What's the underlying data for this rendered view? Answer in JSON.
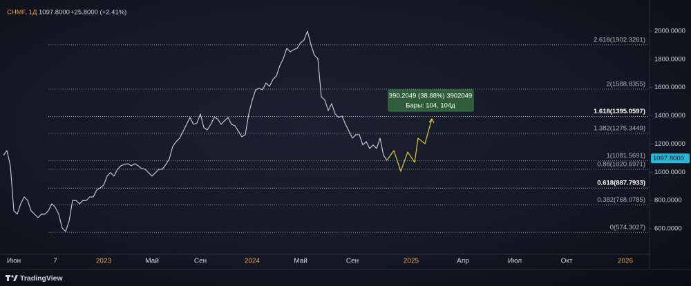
{
  "header": {
    "symbol": "CHMF, 1Д",
    "price": "1097.8000",
    "change": "+25.8000 (+2.41%)"
  },
  "footer": {
    "brand": "TradingView"
  },
  "chart_data": {
    "type": "line",
    "categories": [
      null,
      null,
      null,
      "Июн",
      null,
      null,
      null,
      null,
      null,
      null,
      null,
      null,
      null,
      null,
      null,
      "7",
      null,
      null,
      null,
      null,
      null,
      null,
      null,
      null,
      null,
      null,
      null,
      null,
      null,
      "2023",
      null,
      null,
      null,
      null,
      null,
      null,
      null,
      null,
      null,
      null,
      null,
      null,
      null,
      "Май",
      null,
      null,
      null,
      null,
      null,
      null,
      null,
      null,
      null,
      null,
      null,
      null,
      null,
      "Сен",
      null,
      null,
      null,
      null,
      null,
      null,
      null,
      null,
      null,
      null,
      null,
      null,
      null,
      null,
      "2024",
      null,
      null,
      null,
      null,
      null,
      null,
      null,
      null,
      null,
      null,
      null,
      null,
      null,
      "Май",
      null,
      null,
      null,
      null,
      null,
      null,
      null,
      null,
      null,
      null,
      null,
      null,
      null,
      null,
      "Сен",
      null,
      null,
      null,
      null,
      null,
      null,
      null,
      null,
      null,
      null,
      null,
      null,
      null,
      null,
      null,
      null,
      "2025",
      null,
      null,
      null,
      null,
      null,
      null,
      null,
      null,
      null,
      null,
      null,
      null,
      null,
      null,
      "Апр",
      null,
      null,
      null,
      null,
      null,
      null,
      null,
      null,
      null,
      null,
      null,
      null,
      null,
      null,
      "Июл",
      null,
      null,
      null,
      null,
      null,
      null,
      null,
      null,
      null,
      null,
      null,
      null,
      null,
      null,
      "Окт",
      null,
      null,
      null,
      null,
      null,
      null,
      null,
      null,
      null,
      null,
      null,
      null,
      null,
      null,
      null,
      null,
      "2026",
      null,
      null,
      null,
      null,
      null,
      null,
      null
    ],
    "series": [
      {
        "color": "#d1d4dc",
        "values": [
          1120,
          1153,
          1046,
          727,
          703,
          776,
          825,
          800,
          727,
          703,
          678,
          703,
          703,
          727,
          776,
          751,
          703,
          605,
          580,
          654,
          800,
          800,
          776,
          800,
          800,
          825,
          825,
          874,
          889,
          908,
          972,
          997,
          972,
          1021,
          1046,
          1055,
          1060,
          1046,
          1060,
          1046,
          1026,
          1021,
          997,
          972,
          997,
          1021,
          1021,
          1055,
          1094,
          1183,
          1217,
          1241,
          1290,
          1339,
          1388,
          1339,
          1349,
          1413,
          1315,
          1300,
          1339,
          1388,
          1378,
          1339,
          1364,
          1388,
          1339,
          1330,
          1290,
          1251,
          1266,
          1413,
          1511,
          1584,
          1594,
          1584,
          1633,
          1608,
          1657,
          1682,
          1755,
          1804,
          1878,
          1853,
          1868,
          1878,
          1917,
          1937,
          2000,
          1902,
          1829,
          1804,
          1535,
          1511,
          1437,
          1486,
          1413,
          1388,
          1398,
          1339,
          1290,
          1241,
          1266,
          1266,
          1193,
          1217,
          1168,
          1193,
          1168,
          1241,
          1119,
          1085,
          null,
          null,
          null,
          null,
          null,
          null,
          null,
          null,
          null,
          null,
          null,
          null,
          null,
          null,
          null,
          null,
          null,
          null,
          null,
          null,
          null,
          null,
          null,
          null,
          null,
          null,
          null,
          null,
          null,
          null,
          null,
          null,
          null,
          null,
          null,
          null,
          null,
          null,
          null,
          null,
          null,
          null,
          null,
          null,
          null,
          null,
          null,
          null,
          null,
          null,
          null,
          null,
          null,
          null,
          null,
          null,
          null,
          null,
          null,
          null,
          null,
          null,
          null,
          null,
          null,
          null,
          null,
          null,
          null,
          null,
          null,
          null,
          null,
          null,
          null,
          null
        ]
      },
      {
        "color": "#f0dc32",
        "values": [
          null,
          null,
          null,
          null,
          null,
          null,
          null,
          null,
          null,
          null,
          null,
          null,
          null,
          null,
          null,
          null,
          null,
          null,
          null,
          null,
          null,
          null,
          null,
          null,
          null,
          null,
          null,
          null,
          null,
          null,
          null,
          null,
          null,
          null,
          null,
          null,
          null,
          null,
          null,
          null,
          null,
          null,
          null,
          null,
          null,
          null,
          null,
          null,
          null,
          null,
          null,
          null,
          null,
          null,
          null,
          null,
          null,
          null,
          null,
          null,
          null,
          null,
          null,
          null,
          null,
          null,
          null,
          null,
          null,
          null,
          null,
          null,
          null,
          null,
          null,
          null,
          null,
          null,
          null,
          null,
          null,
          null,
          null,
          null,
          null,
          null,
          null,
          null,
          null,
          null,
          null,
          null,
          null,
          null,
          null,
          null,
          null,
          null,
          null,
          null,
          null,
          null,
          null,
          null,
          null,
          null,
          null,
          null,
          null,
          null,
          null,
          1085,
          1120,
          1153,
          1080,
          1006,
          1075,
          1143,
          1107,
          1070,
          1241,
          1221,
          1202,
          1290,
          1378,
          null,
          null,
          null,
          null,
          null,
          null,
          null,
          null,
          null,
          null,
          null,
          null,
          null,
          null,
          null,
          null,
          null,
          null,
          null,
          null,
          null,
          null,
          null,
          null,
          null,
          null,
          null,
          null,
          null,
          null,
          null,
          null,
          null,
          null,
          null,
          null,
          null,
          null,
          null,
          null,
          null,
          null,
          null,
          null,
          null,
          null,
          null,
          null,
          null,
          null,
          null,
          null,
          null,
          null,
          null,
          null,
          null,
          null,
          null,
          null,
          null,
          null,
          null
        ]
      }
    ],
    "ylim": [
      419,
      2220
    ],
    "yticks": [
      {
        "value": 600,
        "label": "600.0000"
      },
      {
        "value": 800,
        "label": "800.0000"
      },
      {
        "value": 1000,
        "label": "1000.0000"
      },
      {
        "value": 1200,
        "label": "1200.0000"
      },
      {
        "value": 1400,
        "label": "1400.0000"
      },
      {
        "value": 1600,
        "label": "1600.0000"
      },
      {
        "value": 1800,
        "label": "1800.0000"
      },
      {
        "value": 2000,
        "label": "2000.0000"
      }
    ],
    "fib_levels": [
      {
        "value": 1902.3261,
        "label": "2.618(1902.3261)"
      },
      {
        "value": 1588.8355,
        "label": "2(1588.8355)"
      },
      {
        "value": 1395.0597,
        "label": "1.618(1395.0597)",
        "bold": true
      },
      {
        "value": 1275.3449,
        "label": "1.382(1275.3449)"
      },
      {
        "value": 1081.5691,
        "label": "1(1081.5691)"
      },
      {
        "value": 1020.6971,
        "label": "0.88(1020.6971)"
      },
      {
        "value": 887.7933,
        "label": "0.618(887.7933)",
        "bold": true
      },
      {
        "value": 768.0785,
        "label": "0.382(768.0785)"
      },
      {
        "value": 574.3027,
        "label": "0(574.3027)"
      }
    ],
    "last_price": {
      "value": 1097.8,
      "label": "1097.8000",
      "color": "#2bb7da"
    },
    "measure": {
      "line1": "390.2049 (38.88%) 3902049",
      "line2": "Бары: 104, 104д"
    }
  }
}
